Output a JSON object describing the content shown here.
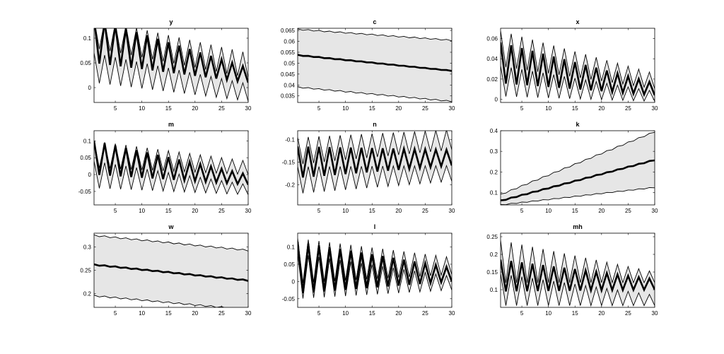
{
  "figure": {
    "panels": [
      {
        "title": "y"
      },
      {
        "title": "c"
      },
      {
        "title": "x"
      },
      {
        "title": "m"
      },
      {
        "title": "n"
      },
      {
        "title": "k"
      },
      {
        "title": "w"
      },
      {
        "title": "l"
      },
      {
        "title": "mh"
      }
    ]
  },
  "chart_data": [
    {
      "type": "area",
      "title": "y",
      "xlim": [
        1,
        30
      ],
      "ylim": [
        -0.03,
        0.12
      ],
      "xticks": [
        5,
        10,
        15,
        20,
        25,
        30
      ],
      "yticks": [
        0,
        0.05,
        0.1
      ],
      "ytick_labels": [
        "0",
        "0.05",
        "0.1"
      ],
      "grid": false,
      "median": {
        "start": 0.095,
        "end": 0.025,
        "osc": 0.09,
        "osc_end": 0.03
      },
      "band_upper": {
        "start": 0.11,
        "end": 0.045,
        "osc": 0.06,
        "osc_end": 0.05
      },
      "band_lower": {
        "start": 0.04,
        "end": -0.01,
        "osc": 0.06,
        "osc_end": 0.035
      }
    },
    {
      "type": "area",
      "title": "c",
      "xlim": [
        1,
        30
      ],
      "ylim": [
        0.032,
        0.066
      ],
      "xticks": [
        5,
        10,
        15,
        20,
        25,
        30
      ],
      "yticks": [
        0.035,
        0.04,
        0.045,
        0.05,
        0.055,
        0.06,
        0.065
      ],
      "ytick_labels": [
        "0.035",
        "0.04",
        "0.045",
        "0.05",
        "0.055",
        "0.06",
        "0.065"
      ],
      "grid": false,
      "median": {
        "start": 0.0537,
        "end": 0.0465,
        "osc": 0.0003,
        "osc_end": 0.0002
      },
      "band_upper": {
        "start": 0.0655,
        "end": 0.0605,
        "osc": 0.0005,
        "osc_end": 0.0005
      },
      "band_lower": {
        "start": 0.039,
        "end": 0.0325,
        "osc": 0.0005,
        "osc_end": 0.0005
      }
    },
    {
      "type": "area",
      "title": "x",
      "xlim": [
        1,
        30
      ],
      "ylim": [
        -0.003,
        0.07
      ],
      "xticks": [
        5,
        10,
        15,
        20,
        25,
        30
      ],
      "yticks": [
        0,
        0.02,
        0.04,
        0.06
      ],
      "ytick_labels": [
        "0",
        "0.02",
        "0.04",
        "0.06"
      ],
      "grid": false,
      "median": {
        "start": 0.036,
        "end": 0.01,
        "osc": 0.04,
        "osc_end": 0.012
      },
      "band_upper": {
        "start": 0.05,
        "end": 0.018,
        "osc": 0.035,
        "osc_end": 0.015
      },
      "band_lower": {
        "start": 0.018,
        "end": 0.003,
        "osc": 0.03,
        "osc_end": 0.01
      }
    },
    {
      "type": "area",
      "title": "m",
      "xlim": [
        1,
        30
      ],
      "ylim": [
        -0.09,
        0.13
      ],
      "xticks": [
        5,
        10,
        15,
        20,
        25,
        30
      ],
      "yticks": [
        -0.05,
        0,
        0.05,
        0.1
      ],
      "ytick_labels": [
        "-0.05",
        "0",
        "0.05",
        "0.1"
      ],
      "grid": false,
      "median": {
        "start": 0.05,
        "end": -0.015,
        "osc": 0.1,
        "osc_end": 0.03
      },
      "band_upper": {
        "start": 0.06,
        "end": 0.02,
        "osc": 0.08,
        "osc_end": 0.04
      },
      "band_lower": {
        "start": 0.0,
        "end": -0.045,
        "osc": 0.08,
        "osc_end": 0.03
      }
    },
    {
      "type": "area",
      "title": "n",
      "xlim": [
        1,
        30
      ],
      "ylim": [
        -0.245,
        -0.08
      ],
      "xticks": [
        5,
        10,
        15,
        20,
        25,
        30
      ],
      "yticks": [
        -0.2,
        -0.15,
        -0.1
      ],
      "ytick_labels": [
        "-0.2",
        "-0.15",
        "-0.1"
      ],
      "grid": false,
      "median": {
        "start": -0.15,
        "end": -0.14,
        "osc": 0.07,
        "osc_end": 0.035
      },
      "band_upper": {
        "start": -0.125,
        "end": -0.1,
        "osc": 0.06,
        "osc_end": 0.045
      },
      "band_lower": {
        "start": -0.19,
        "end": -0.175,
        "osc": 0.06,
        "osc_end": 0.035
      }
    },
    {
      "type": "area",
      "title": "k",
      "xlim": [
        1,
        30
      ],
      "ylim": [
        0.04,
        0.4
      ],
      "xticks": [
        5,
        10,
        15,
        20,
        25,
        30
      ],
      "yticks": [
        0.1,
        0.2,
        0.3,
        0.4
      ],
      "ytick_labels": [
        "0.1",
        "0.2",
        "0.3",
        "0.4"
      ],
      "grid": false,
      "median": {
        "start": 0.06,
        "end": 0.258,
        "osc": 0.004,
        "osc_end": 0.004
      },
      "band_upper": {
        "start": 0.09,
        "end": 0.395,
        "osc": 0.006,
        "osc_end": 0.006
      },
      "band_lower": {
        "start": 0.04,
        "end": 0.125,
        "osc": 0.004,
        "osc_end": 0.004
      }
    },
    {
      "type": "area",
      "title": "w",
      "xlim": [
        1,
        30
      ],
      "ylim": [
        0.17,
        0.33
      ],
      "xticks": [
        5,
        10,
        15,
        20,
        25,
        30
      ],
      "yticks": [
        0.2,
        0.25,
        0.3
      ],
      "ytick_labels": [
        "0.2",
        "0.25",
        "0.3"
      ],
      "grid": false,
      "median": {
        "start": 0.262,
        "end": 0.228,
        "osc": 0.002,
        "osc_end": 0.002
      },
      "band_upper": {
        "start": 0.325,
        "end": 0.293,
        "osc": 0.003,
        "osc_end": 0.003
      },
      "band_lower": {
        "start": 0.195,
        "end": 0.165,
        "osc": 0.003,
        "osc_end": 0.003
      }
    },
    {
      "type": "area",
      "title": "l",
      "xlim": [
        1,
        30
      ],
      "ylim": [
        -0.075,
        0.14
      ],
      "xticks": [
        5,
        10,
        15,
        20,
        25,
        30
      ],
      "yticks": [
        -0.05,
        0,
        0.05,
        0.1
      ],
      "ytick_labels": [
        "-0.05",
        "0",
        "0.05",
        "0.1"
      ],
      "grid": false,
      "median": {
        "start": 0.04,
        "end": 0.02,
        "osc": 0.15,
        "osc_end": 0.04
      },
      "band_upper": {
        "start": 0.06,
        "end": 0.045,
        "osc": 0.13,
        "osc_end": 0.05
      },
      "band_lower": {
        "start": 0.015,
        "end": -0.005,
        "osc": 0.13,
        "osc_end": 0.04
      }
    },
    {
      "type": "area",
      "title": "mh",
      "xlim": [
        1,
        30
      ],
      "ylim": [
        0.05,
        0.26
      ],
      "xticks": [
        5,
        10,
        15,
        20,
        25,
        30
      ],
      "yticks": [
        0.1,
        0.15,
        0.2,
        0.25
      ],
      "ytick_labels": [
        "0.1",
        "0.15",
        "0.2",
        "0.25"
      ],
      "grid": false,
      "median": {
        "start": 0.14,
        "end": 0.115,
        "osc": 0.09,
        "osc_end": 0.03
      },
      "band_upper": {
        "start": 0.18,
        "end": 0.135,
        "osc": 0.12,
        "osc_end": 0.03
      },
      "band_lower": {
        "start": 0.1,
        "end": 0.07,
        "osc": 0.09,
        "osc_end": 0.03
      }
    }
  ],
  "colors": {
    "band_fill": "#e6e6e6",
    "band_edge": "#000000",
    "median": "#000000",
    "axes": "#000000"
  }
}
